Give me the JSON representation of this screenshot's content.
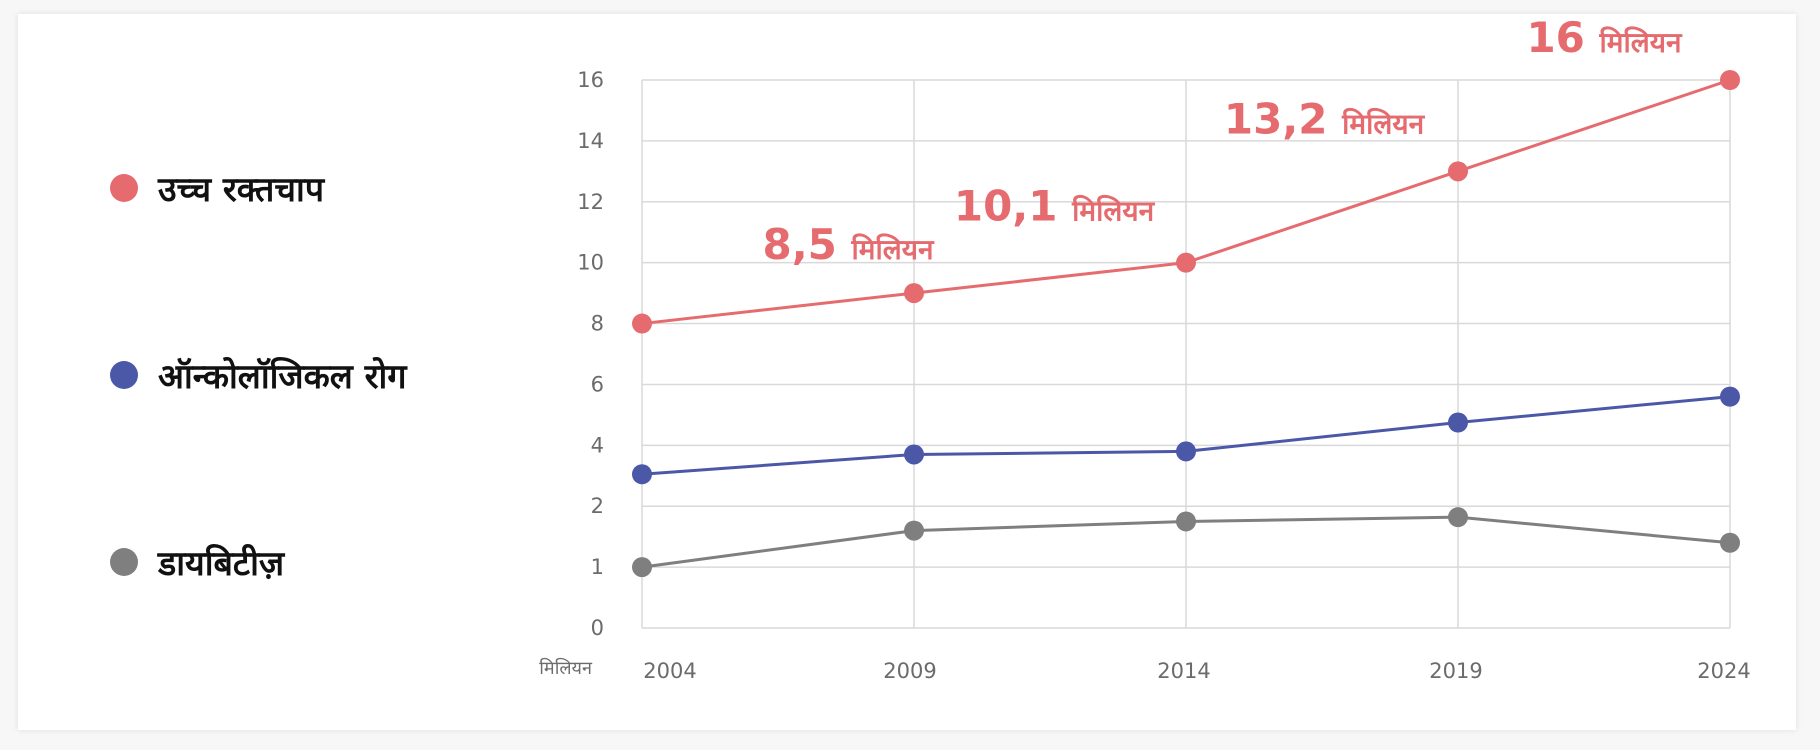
{
  "chart_data": {
    "type": "line",
    "x": [
      2004,
      2009,
      2014,
      2019,
      2024
    ],
    "y_ticks": [
      0,
      1,
      2,
      4,
      6,
      8,
      10,
      12,
      14,
      16
    ],
    "ylim": [
      0,
      16
    ],
    "y_unit": "मिलियन",
    "grid": true,
    "series": [
      {
        "name": "उच्च रक्तचाप",
        "color": "#e56b6f",
        "values": [
          8,
          9,
          10,
          13,
          16
        ]
      },
      {
        "name": "ऑन्कोलॉजिकल रोग",
        "color": "#4a58a7",
        "values": [
          3.05,
          3.7,
          3.8,
          4.75,
          5.6
        ]
      },
      {
        "name": "डायबिटीज़",
        "color": "#7f7f7f",
        "values": [
          1,
          1.6,
          1.75,
          1.82,
          1.4
        ]
      }
    ],
    "annotations": [
      {
        "x": 2009,
        "value": "8,5",
        "unit": "मिलियन"
      },
      {
        "x": 2014,
        "value": "10,1",
        "unit": "मिलियन"
      },
      {
        "x": 2019,
        "value": "13,2",
        "unit": "मिलियन"
      },
      {
        "x": 2024,
        "value": "16",
        "unit": "मिलियन"
      }
    ]
  }
}
